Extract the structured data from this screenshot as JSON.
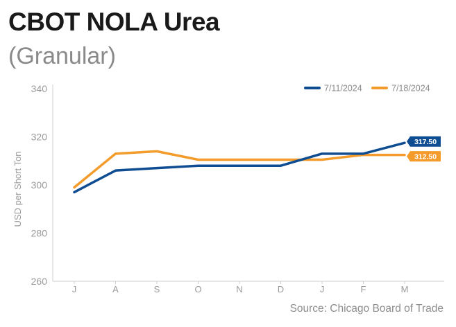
{
  "header": {
    "title": "CBOT NOLA Urea",
    "subtitle": "(Granular)"
  },
  "footer": {
    "source": "Source: Chicago Board of Trade"
  },
  "chart_data": {
    "type": "line",
    "categories": [
      "J",
      "A",
      "S",
      "O",
      "N",
      "D",
      "J",
      "F",
      "M"
    ],
    "ylabel": "USD per Short Ton",
    "xlabel": "",
    "ylim": [
      260,
      340
    ],
    "yticks": [
      260,
      280,
      300,
      320,
      340
    ],
    "grid": false,
    "legend_position": "top-right",
    "series": [
      {
        "name": "7/11/2024",
        "color": "#0f4d92",
        "values": [
          297,
          306,
          307,
          308,
          308,
          308,
          313,
          313,
          317.5
        ],
        "end_label": "317.50"
      },
      {
        "name": "7/18/2024",
        "color": "#f39b2b",
        "values": [
          299,
          313,
          314,
          310.5,
          310.5,
          310.5,
          310.5,
          312.5,
          312.5
        ],
        "end_label": "312.50"
      }
    ]
  }
}
